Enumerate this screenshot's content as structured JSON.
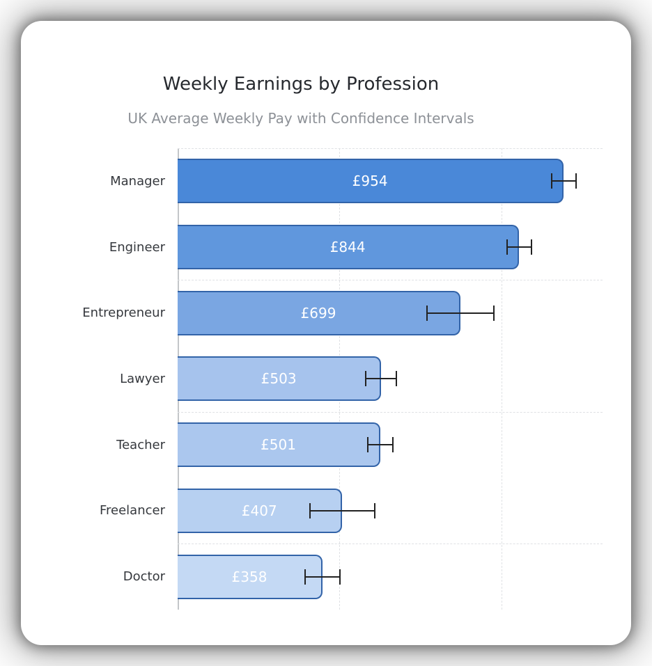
{
  "chart_data": {
    "type": "bar",
    "orientation": "horizontal",
    "title": "Weekly Earnings by Profession",
    "subtitle": "UK Average Weekly Pay with Confidence Intervals",
    "categories": [
      "Manager",
      "Engineer",
      "Entrepreneur",
      "Lawyer",
      "Teacher",
      "Freelancer",
      "Doctor"
    ],
    "values": [
      954,
      844,
      699,
      503,
      501,
      407,
      358
    ],
    "value_labels": [
      "£954",
      "£844",
      "£699",
      "£503",
      "£501",
      "£407",
      "£358"
    ],
    "ci_half_width": [
      32,
      32,
      85,
      40,
      33,
      82,
      44
    ],
    "currency_unit": "£",
    "xlim": [
      0,
      1050
    ],
    "grid_x_ticks": [
      400,
      800
    ],
    "h_grid_row_boundaries": [
      0,
      2,
      4,
      6
    ],
    "grid_style": "dashed",
    "legend_position": "none",
    "bar_colors": [
      "#4a88d8",
      "#6097dd",
      "#7aa6e2",
      "#a6c3ed",
      "#abc7ee",
      "#b7d0f1",
      "#c4d9f4"
    ],
    "bar_border_color": "#3263a8",
    "errorbar_color": "#222222",
    "value_label_color": "#ffffff",
    "title_color": "#26292e",
    "subtitle_color": "#8d9197",
    "category_label_color": "#35383d"
  }
}
